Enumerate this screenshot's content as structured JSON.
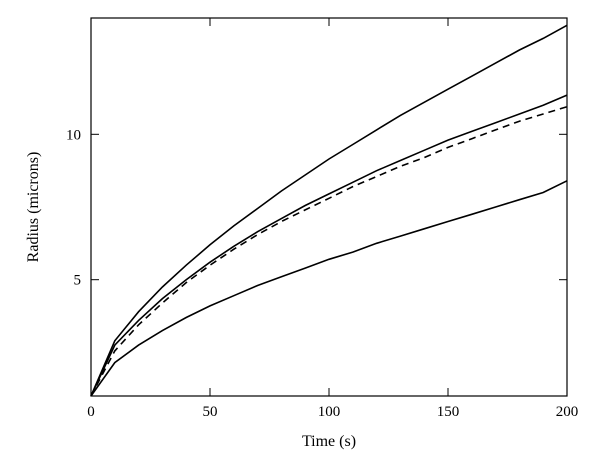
{
  "chart_data": {
    "type": "line",
    "title": "",
    "xlabel": "Time (s)",
    "ylabel": "Radius (microns)",
    "xlim": [
      0,
      200
    ],
    "ylim": [
      1,
      14
    ],
    "x_ticks": [
      0,
      50,
      100,
      150,
      200
    ],
    "y_ticks": [
      5,
      10
    ],
    "grid": false,
    "series": [
      {
        "style": "solid",
        "x": [
          0,
          10,
          20,
          30,
          40,
          50,
          60,
          70,
          80,
          90,
          100,
          110,
          120,
          130,
          140,
          150,
          160,
          170,
          180,
          190,
          200
        ],
        "y": [
          1.0,
          2.9,
          3.9,
          4.75,
          5.5,
          6.2,
          6.85,
          7.45,
          8.05,
          8.6,
          9.15,
          9.65,
          10.15,
          10.65,
          11.1,
          11.55,
          12.0,
          12.45,
          12.9,
          13.3,
          13.75
        ]
      },
      {
        "style": "solid",
        "x": [
          0,
          10,
          20,
          30,
          40,
          50,
          60,
          70,
          80,
          90,
          100,
          110,
          120,
          130,
          140,
          150,
          160,
          170,
          180,
          190,
          200
        ],
        "y": [
          1.0,
          2.75,
          3.6,
          4.35,
          5.0,
          5.6,
          6.15,
          6.65,
          7.1,
          7.55,
          7.95,
          8.35,
          8.75,
          9.1,
          9.45,
          9.8,
          10.1,
          10.4,
          10.7,
          11.0,
          11.35
        ]
      },
      {
        "style": "dashed",
        "x": [
          0,
          10,
          20,
          30,
          40,
          50,
          60,
          70,
          80,
          90,
          100,
          110,
          120,
          130,
          140,
          150,
          160,
          170,
          180,
          190,
          200
        ],
        "y": [
          1.0,
          2.55,
          3.45,
          4.2,
          4.9,
          5.5,
          6.05,
          6.55,
          7.0,
          7.4,
          7.8,
          8.2,
          8.55,
          8.9,
          9.2,
          9.55,
          9.85,
          10.15,
          10.45,
          10.7,
          10.95
        ]
      },
      {
        "style": "solid",
        "x": [
          0,
          10,
          20,
          30,
          40,
          50,
          60,
          70,
          80,
          90,
          100,
          110,
          120,
          130,
          140,
          150,
          160,
          170,
          180,
          190,
          200
        ],
        "y": [
          1.0,
          2.15,
          2.75,
          3.25,
          3.7,
          4.1,
          4.45,
          4.8,
          5.1,
          5.4,
          5.7,
          5.95,
          6.25,
          6.5,
          6.75,
          7.0,
          7.25,
          7.5,
          7.75,
          8.0,
          8.4
        ]
      }
    ]
  }
}
